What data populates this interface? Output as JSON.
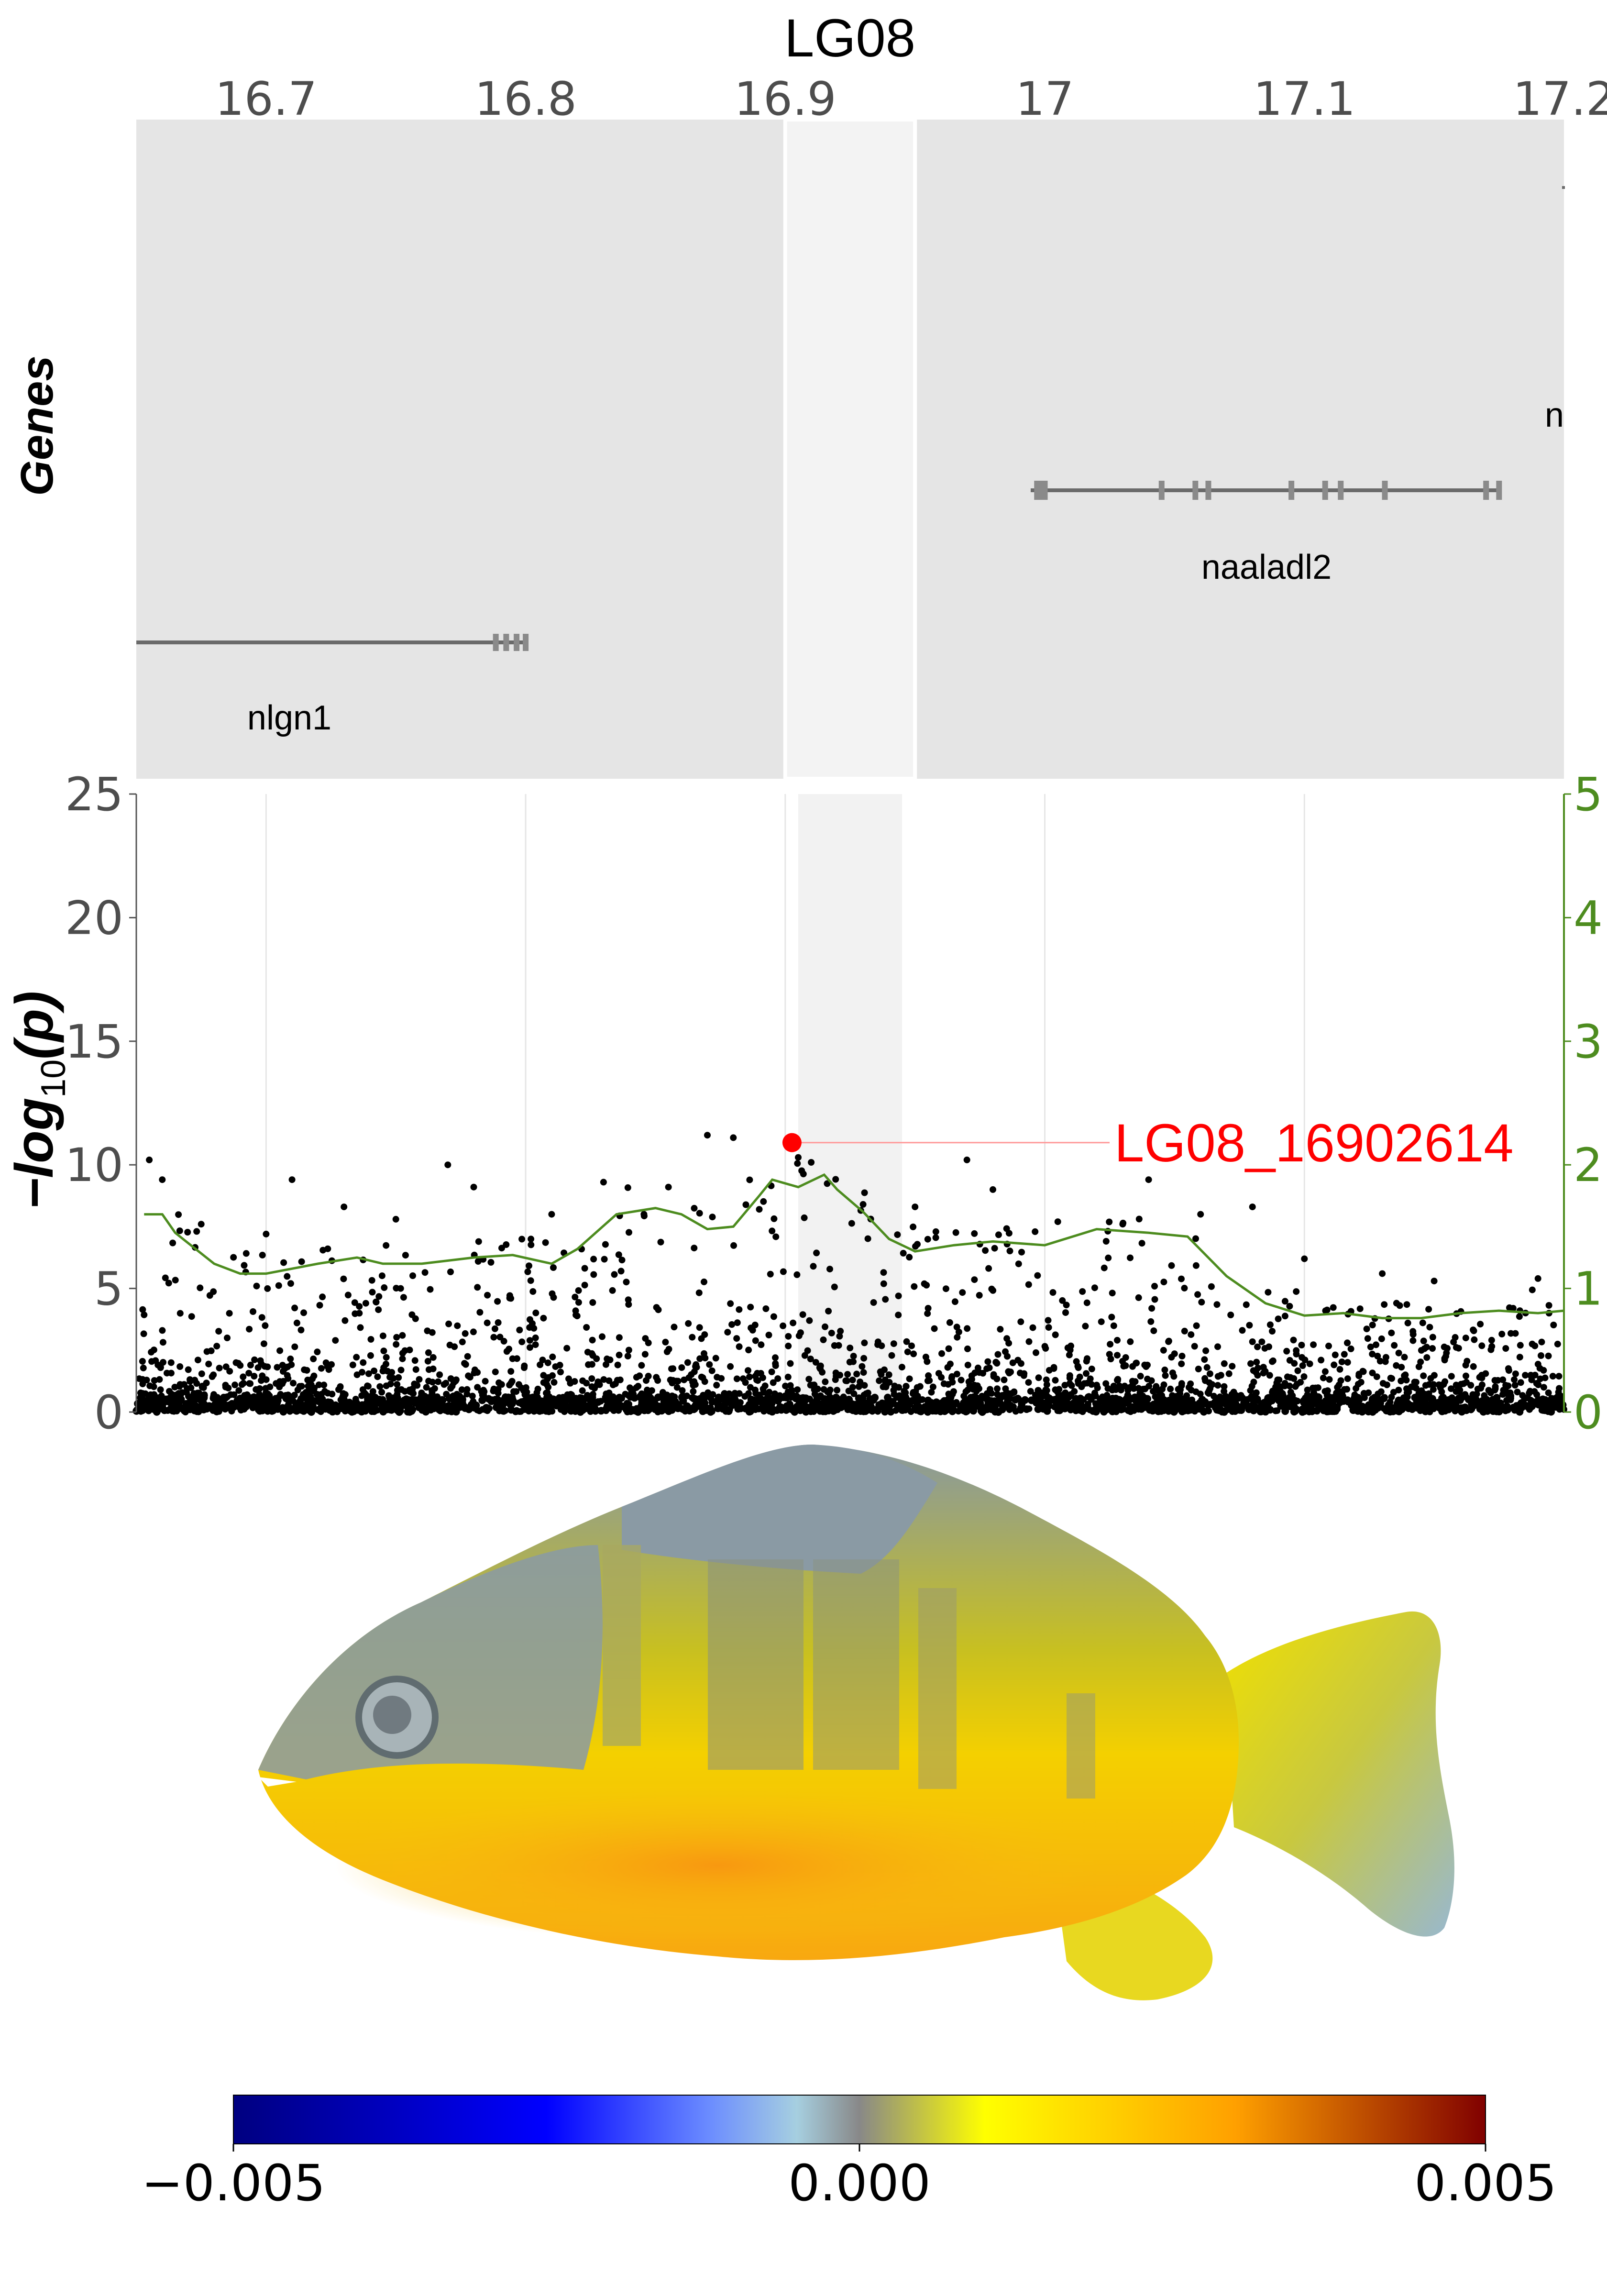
{
  "chart_data": [
    {
      "type": "gene-track",
      "title": "LG08",
      "ylabel": "Genes",
      "xlim": [
        16.65,
        17.2
      ],
      "x_ticks": [
        "16.7",
        "16.8",
        "16.9",
        "17",
        "17.1",
        "17.2"
      ],
      "highlight_region": [
        16.9,
        16.95
      ],
      "genes": [
        {
          "name": "nlgn1",
          "start": 16.65,
          "end": 16.8,
          "exons": [
            16.7885,
            16.7925,
            16.7965,
            16.8
          ]
        },
        {
          "name": "naaladl2",
          "start": 16.997,
          "end": 17.18,
          "exons": [
            16.997,
            16.999,
            17.0,
            17.045,
            17.058,
            17.063,
            17.095,
            17.108,
            17.114,
            17.131,
            17.17,
            17.175
          ]
        },
        {
          "name": "n",
          "start": 17.2,
          "end": 17.2,
          "exons": []
        }
      ]
    },
    {
      "type": "scatter",
      "ylabel": "-log10(p)",
      "ylim": [
        0,
        25
      ],
      "y_ticks": [
        "0",
        "5",
        "10",
        "15",
        "20",
        "25"
      ],
      "y2lim": [
        0,
        5
      ],
      "y2_ticks": [
        "0",
        "1",
        "2",
        "3",
        "4",
        "5"
      ],
      "xlim": [
        16.65,
        17.2
      ],
      "highlight_region": [
        16.905,
        16.945
      ],
      "lead_snp": {
        "label": "LG08_16902614",
        "x": 16.9026,
        "y": 10.9
      },
      "peaks": [
        [
          16.655,
          10.2
        ],
        [
          16.66,
          9.4
        ],
        [
          16.675,
          7.6
        ],
        [
          16.7,
          7.2
        ],
        [
          16.71,
          9.4
        ],
        [
          16.73,
          8.3
        ],
        [
          16.75,
          7.8
        ],
        [
          16.77,
          10.0
        ],
        [
          16.78,
          9.1
        ],
        [
          16.81,
          8.0
        ],
        [
          16.83,
          9.3
        ],
        [
          16.855,
          9.1
        ],
        [
          16.87,
          11.2
        ],
        [
          16.88,
          11.1
        ],
        [
          16.89,
          8.2
        ],
        [
          16.905,
          10.3
        ],
        [
          16.91,
          10.1
        ],
        [
          16.93,
          8.4
        ],
        [
          16.95,
          8.3
        ],
        [
          16.97,
          10.2
        ],
        [
          16.98,
          9.0
        ],
        [
          17.005,
          7.7
        ],
        [
          17.03,
          7.6
        ],
        [
          17.04,
          9.4
        ],
        [
          17.06,
          8.0
        ],
        [
          17.08,
          8.3
        ],
        [
          17.1,
          6.2
        ],
        [
          17.13,
          5.6
        ],
        [
          17.15,
          5.3
        ],
        [
          17.19,
          5.4
        ]
      ],
      "series": [
        {
          "name": "",
          "axis": "y2",
          "color": "#4d8c1f",
          "x": [
            16.653,
            16.66,
            16.665,
            16.68,
            16.69,
            16.7,
            16.72,
            16.735,
            16.745,
            16.76,
            16.78,
            16.795,
            16.81,
            16.82,
            16.835,
            16.85,
            16.86,
            16.87,
            16.88,
            16.89,
            16.895,
            16.905,
            16.915,
            16.92,
            16.93,
            16.94,
            16.95,
            16.965,
            16.98,
            17.0,
            17.02,
            17.04,
            17.055,
            17.07,
            17.085,
            17.1,
            17.115,
            17.13,
            17.145,
            17.16,
            17.175,
            17.19,
            17.2
          ],
          "y": [
            1.6,
            1.6,
            1.45,
            1.2,
            1.12,
            1.12,
            1.2,
            1.25,
            1.2,
            1.2,
            1.25,
            1.27,
            1.2,
            1.32,
            1.6,
            1.65,
            1.6,
            1.48,
            1.5,
            1.75,
            1.88,
            1.82,
            1.92,
            1.8,
            1.62,
            1.4,
            1.3,
            1.35,
            1.38,
            1.35,
            1.48,
            1.45,
            1.42,
            1.1,
            0.88,
            0.78,
            0.8,
            0.76,
            0.76,
            0.8,
            0.82,
            0.8,
            0.82
          ]
        }
      ]
    },
    {
      "type": "heatmap",
      "colorbar": {
        "ticks": [
          "−0.005",
          "0.000",
          "0.005"
        ],
        "colors": [
          "#000080",
          "#0000ff",
          "#6b8cff",
          "#a6cfe0",
          "#888888",
          "#ffff00",
          "#ffa000",
          "#800000"
        ]
      }
    }
  ]
}
